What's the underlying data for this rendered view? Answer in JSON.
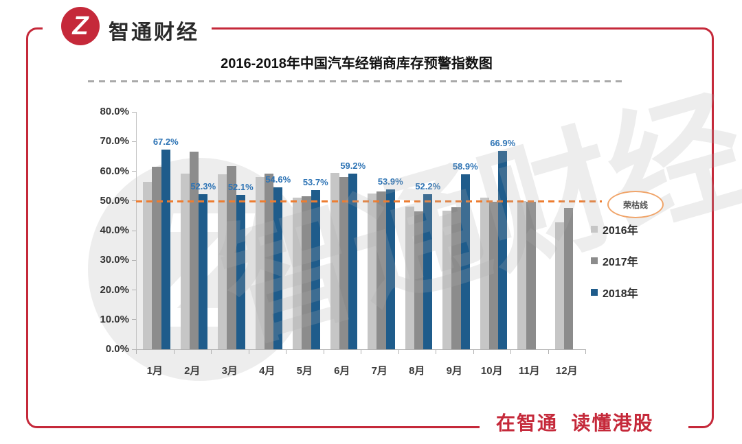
{
  "brand": {
    "logo_text": "智通财经",
    "logo_glyph": "Z",
    "slogan": "在智通  读懂港股",
    "red": "#c5293a"
  },
  "watermark": {
    "text": "智通财经",
    "glyph": "Z"
  },
  "chart_data": {
    "type": "bar",
    "title": "2016-2018年中国汽车经销商库存预警指数图",
    "categories": [
      "1月",
      "2月",
      "3月",
      "4月",
      "5月",
      "6月",
      "7月",
      "8月",
      "9月",
      "10月",
      "11月",
      "12月"
    ],
    "series": [
      {
        "key": "2016",
        "name": "2016年",
        "color": "#c6c6c6",
        "values": [
          56.5,
          59.3,
          58.9,
          58.0,
          51.2,
          59.4,
          52.6,
          48.2,
          46.8,
          51.2,
          50.0,
          42.8
        ]
      },
      {
        "key": "2017",
        "name": "2017年",
        "color": "#8c8c8c",
        "values": [
          61.4,
          66.5,
          61.8,
          59.2,
          51.6,
          58.1,
          53.2,
          46.4,
          47.8,
          49.8,
          49.7,
          47.6
        ]
      },
      {
        "key": "2018",
        "name": "2018年",
        "color": "#1f5c8b",
        "values": [
          67.2,
          52.3,
          52.1,
          54.6,
          53.7,
          59.2,
          53.9,
          52.2,
          58.9,
          66.9,
          null,
          null
        ],
        "data_labels": [
          "67.2%",
          "52.3%",
          "52.1%",
          "54.6%",
          "53.7%",
          "59.2%",
          "53.9%",
          "52.2%",
          "58.9%",
          "66.9%",
          null,
          null
        ]
      }
    ],
    "ylim": [
      0,
      80
    ],
    "ytick_step": 10,
    "ytick_labels": [
      "0.0%",
      "10.0%",
      "20.0%",
      "30.0%",
      "40.0%",
      "50.0%",
      "60.0%",
      "70.0%",
      "80.0%"
    ],
    "reference_line": {
      "value": 50,
      "label": "荣枯线",
      "color": "#ed7d31",
      "oval_color": "#f0a469"
    },
    "data_label_color": "#2e74b5",
    "legend_position": "right",
    "grid": false
  }
}
